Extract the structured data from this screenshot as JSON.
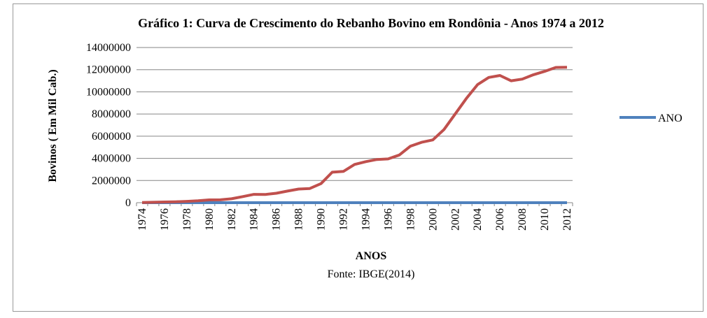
{
  "chart_data": {
    "type": "line",
    "title": "Gráfico 1: Curva de Crescimento do Rebanho Bovino em Rondônia - Anos 1974 a 2012",
    "x_label": "ANOS",
    "y_label": "Bovinos ( Em Mil Cab.)",
    "source": "Fonte: IBGE(2014)",
    "categories": [
      "1974",
      null,
      "1976",
      null,
      "1978",
      null,
      "1980",
      null,
      "1982",
      null,
      "1984",
      null,
      "1986",
      null,
      "1988",
      null,
      "1990",
      null,
      "1992",
      null,
      "1994",
      null,
      "1996",
      null,
      "1998",
      null,
      "2000",
      null,
      "2002",
      null,
      "2004",
      null,
      "2006",
      null,
      "2008",
      null,
      "2010",
      null,
      "2012"
    ],
    "series": [
      {
        "name": "ANO",
        "color": "#4f81bd",
        "values": [
          1974,
          1975,
          1976,
          1977,
          1978,
          1979,
          1980,
          1981,
          1982,
          1983,
          1984,
          1985,
          1986,
          1987,
          1988,
          1989,
          1990,
          1991,
          1992,
          1993,
          1994,
          1995,
          1996,
          1997,
          1998,
          1999,
          2000,
          2001,
          2002,
          2003,
          2004,
          2005,
          2006,
          2007,
          2008,
          2009,
          2010,
          2011,
          2012
        ]
      },
      {
        "color": "#c0504d",
        "values": [
          20000,
          40000,
          60000,
          80000,
          120000,
          170000,
          250000,
          260000,
          350000,
          550000,
          750000,
          740000,
          850000,
          1050000,
          1230000,
          1280000,
          1720000,
          2750000,
          2820000,
          3450000,
          3700000,
          3900000,
          3950000,
          4300000,
          5100000,
          5450000,
          5660000,
          6600000,
          8000000,
          9400000,
          10650000,
          11300000,
          11480000,
          11000000,
          11150000,
          11550000,
          11850000,
          12200000,
          12220000
        ]
      }
    ],
    "ylim": [
      0,
      14000000
    ],
    "yticks": [
      0,
      2000000,
      4000000,
      6000000,
      8000000,
      10000000,
      12000000,
      14000000
    ],
    "grid": true,
    "legend": "right"
  }
}
